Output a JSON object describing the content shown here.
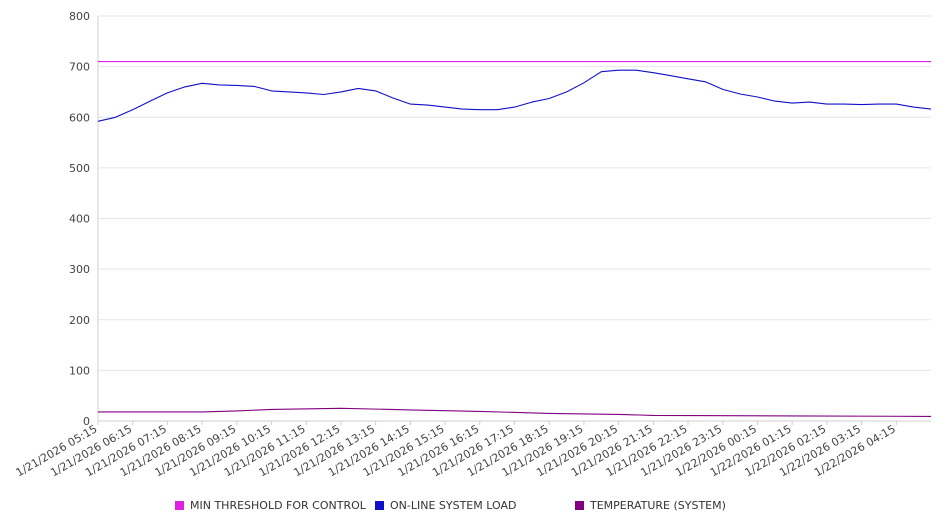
{
  "chart_data": {
    "type": "line",
    "ylim": [
      0,
      800
    ],
    "yticks": [
      0,
      100,
      200,
      300,
      400,
      500,
      600,
      700,
      800
    ],
    "grid": true,
    "legend_position": "bottom",
    "x_tick_labels": [
      "1/21/2026 05:15",
      "1/21/2026 06:15",
      "1/21/2026 07:15",
      "1/21/2026 08:15",
      "1/21/2026 09:15",
      "1/21/2026 10:15",
      "1/21/2026 11:15",
      "1/21/2026 12:15",
      "1/21/2026 13:15",
      "1/21/2026 14:15",
      "1/21/2026 15:15",
      "1/21/2026 16:15",
      "1/21/2026 17:15",
      "1/21/2026 18:15",
      "1/21/2026 19:15",
      "1/21/2026 20:15",
      "1/21/2026 21:15",
      "1/21/2026 22:15",
      "1/21/2026 23:15",
      "1/22/2026 00:15",
      "1/22/2026 01:15",
      "1/22/2026 02:15",
      "1/22/2026 03:15",
      "1/22/2026 04:15"
    ],
    "x_range": [
      "1/21/2026 05:15",
      "1/22/2026 05:15"
    ],
    "series": [
      {
        "name": "MIN THRESHOLD FOR CONTROL",
        "color": "#e020e0",
        "x": [
          "1/21/2026 05:15",
          "1/22/2026 05:15"
        ],
        "values": [
          710,
          710
        ]
      },
      {
        "name": "ON-LINE SYSTEM LOAD",
        "color": "#1010c8",
        "x": [
          "1/21/2026 05:15",
          "1/21/2026 05:45",
          "1/21/2026 06:15",
          "1/21/2026 06:45",
          "1/21/2026 07:15",
          "1/21/2026 07:45",
          "1/21/2026 08:15",
          "1/21/2026 08:45",
          "1/21/2026 09:15",
          "1/21/2026 09:45",
          "1/21/2026 10:15",
          "1/21/2026 10:45",
          "1/21/2026 11:15",
          "1/21/2026 11:45",
          "1/21/2026 12:15",
          "1/21/2026 12:45",
          "1/21/2026 13:15",
          "1/21/2026 13:45",
          "1/21/2026 14:15",
          "1/21/2026 14:45",
          "1/21/2026 15:15",
          "1/21/2026 15:45",
          "1/21/2026 16:15",
          "1/21/2026 16:45",
          "1/21/2026 17:15",
          "1/21/2026 17:45",
          "1/21/2026 18:15",
          "1/21/2026 18:45",
          "1/21/2026 19:15",
          "1/21/2026 19:45",
          "1/21/2026 20:15",
          "1/21/2026 20:45",
          "1/21/2026 21:15",
          "1/21/2026 21:45",
          "1/21/2026 22:15",
          "1/21/2026 22:45",
          "1/21/2026 23:15",
          "1/21/2026 23:45",
          "1/22/2026 00:15",
          "1/22/2026 00:45",
          "1/22/2026 01:15",
          "1/22/2026 01:45",
          "1/22/2026 02:15",
          "1/22/2026 02:45",
          "1/22/2026 03:15",
          "1/22/2026 03:45",
          "1/22/2026 04:15",
          "1/22/2026 04:45",
          "1/22/2026 05:15"
        ],
        "values": [
          592,
          600,
          615,
          632,
          648,
          660,
          667,
          664,
          663,
          661,
          652,
          650,
          648,
          645,
          650,
          657,
          652,
          638,
          626,
          624,
          620,
          616,
          615,
          615,
          620,
          630,
          637,
          650,
          668,
          690,
          693,
          693,
          688,
          682,
          676,
          670,
          655,
          646,
          640,
          632,
          628,
          630,
          626,
          626,
          625,
          626,
          626,
          620,
          616
        ]
      },
      {
        "name": "TEMPERATURE (SYSTEM)",
        "color": "#800080",
        "x": [
          "1/21/2026 05:15",
          "1/21/2026 08:15",
          "1/21/2026 09:15",
          "1/21/2026 10:15",
          "1/21/2026 12:15",
          "1/21/2026 14:15",
          "1/21/2026 16:15",
          "1/21/2026 18:15",
          "1/21/2026 20:15",
          "1/21/2026 21:15",
          "1/22/2026 01:15",
          "1/22/2026 05:15"
        ],
        "values": [
          18,
          18,
          20,
          23,
          25,
          22,
          19,
          15,
          13,
          11,
          10,
          9
        ]
      }
    ]
  },
  "legend": [
    {
      "label": "MIN THRESHOLD FOR CONTROL",
      "color": "#e020e0"
    },
    {
      "label": "ON-LINE SYSTEM LOAD",
      "color": "#1010c8"
    },
    {
      "label": "TEMPERATURE (SYSTEM)",
      "color": "#800080"
    }
  ]
}
